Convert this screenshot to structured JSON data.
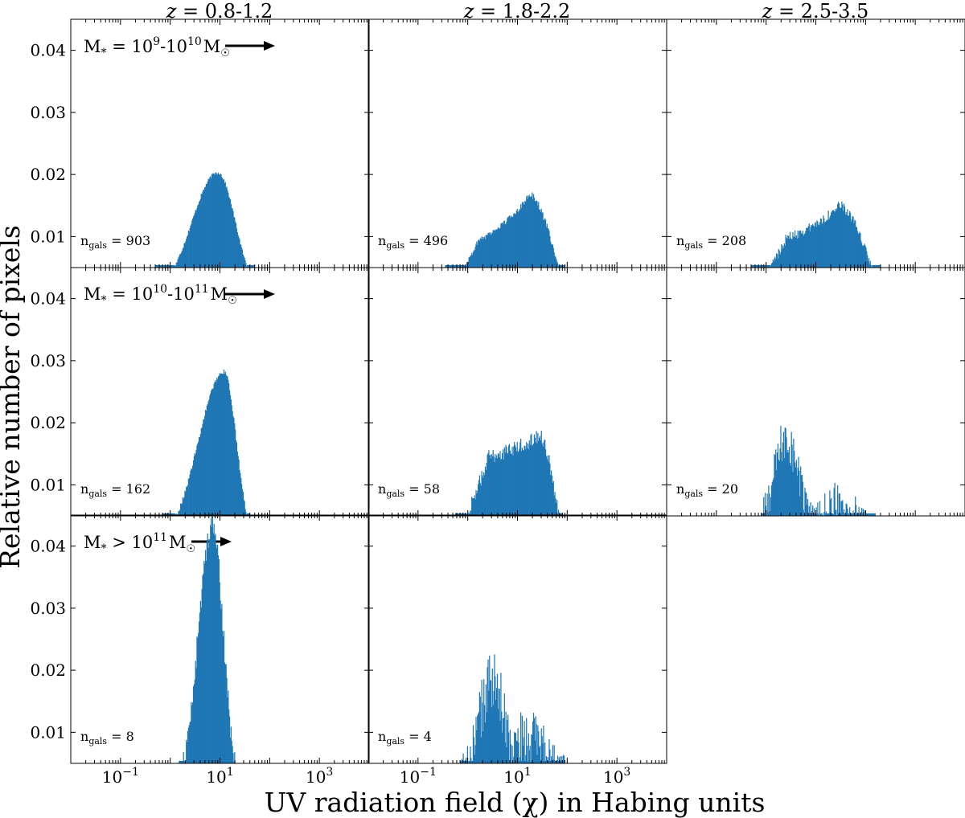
{
  "figure": {
    "ylabel": "Relative number of pixels",
    "xlabel": "UV radiation field (χ) in Habing units",
    "col_titles": [
      {
        "z": "z",
        "range": " = 0.8-1.2"
      },
      {
        "z": "z",
        "range": " = 1.8-2.2"
      },
      {
        "z": "z",
        "range": " = 2.5-3.5"
      }
    ],
    "row_labels": [
      {
        "prefix": "M",
        "sub": "*",
        "mid": " = 10",
        "sup1": "9",
        "mid2": "-10",
        "sup2": "10",
        "unit": "M",
        "unit_sub": "☉"
      },
      {
        "prefix": "M",
        "sub": "*",
        "mid": " = 10",
        "sup1": "10",
        "mid2": "-10",
        "sup2": "11",
        "unit": "M",
        "unit_sub": "☉"
      },
      {
        "prefix": "M",
        "sub": "*",
        "mid": " > 10",
        "sup1": "11",
        "mid2": "",
        "sup2": "",
        "unit": "M",
        "unit_sub": "☉"
      }
    ],
    "bar_color": "#1f77b4",
    "ytick_labels": [
      "0.01",
      "0.02",
      "0.03",
      "0.04"
    ],
    "xtick_labels": [
      {
        "base": "10",
        "exp": "−1"
      },
      {
        "base": "10",
        "exp": "1"
      },
      {
        "base": "10",
        "exp": "3"
      }
    ]
  },
  "chart_data": {
    "type": "histogram-grid",
    "x_scale": "log",
    "xlim": [
      0.01,
      10000
    ],
    "ylim": [
      0.005,
      0.045
    ],
    "yticks": [
      0.01,
      0.02,
      0.03,
      0.04
    ],
    "xticks": [
      0.1,
      10,
      1000
    ],
    "panels": [
      {
        "row": 0,
        "col": 0,
        "n_label": "903",
        "shape": "smooth",
        "peak_x": 9,
        "peak_y": 0.0203,
        "x_min": 0.5,
        "x_max": 50,
        "noise": 0.0003
      },
      {
        "row": 0,
        "col": 1,
        "n_label": "496",
        "shape": "bimodal",
        "peak_x": 18,
        "peak_y": 0.0168,
        "x_min": 0.35,
        "x_max": 90,
        "shoulder_x": 1.2,
        "shoulder_y": 0.0085,
        "noise": 0.0005
      },
      {
        "row": 0,
        "col": 2,
        "n_label": "208",
        "shape": "bimodal",
        "peak_x": 30,
        "peak_y": 0.015,
        "x_min": 0.5,
        "x_max": 200,
        "shoulder_x": 2,
        "shoulder_y": 0.009,
        "noise": 0.0008
      },
      {
        "row": 1,
        "col": 0,
        "n_label": "162",
        "shape": "smooth",
        "peak_x": 12,
        "peak_y": 0.0282,
        "x_min": 0.7,
        "x_max": 40,
        "noise": 0.0004
      },
      {
        "row": 1,
        "col": 1,
        "n_label": "58",
        "shape": "bimodal",
        "peak_x": 28,
        "peak_y": 0.018,
        "x_min": 0.55,
        "x_max": 80,
        "shoulder_x": 1.8,
        "shoulder_y": 0.014,
        "noise": 0.0012
      },
      {
        "row": 1,
        "col": 2,
        "n_label": "20",
        "shape": "spiky",
        "peak_x": 2.5,
        "peak_y": 0.0215,
        "x_min": 0.8,
        "x_max": 160,
        "shoulder_x": 30,
        "shoulder_y": 0.009,
        "noise": 0.0035
      },
      {
        "row": 2,
        "col": 0,
        "n_label": "8",
        "shape": "narrow",
        "peak_x": 7,
        "peak_y": 0.0435,
        "x_min": 1.5,
        "x_max": 20,
        "noise": 0.002
      },
      {
        "row": 2,
        "col": 1,
        "n_label": "4",
        "shape": "spiky",
        "peak_x": 3,
        "peak_y": 0.022,
        "x_min": 0.7,
        "x_max": 90,
        "shoulder_x": 18,
        "shoulder_y": 0.011,
        "noise": 0.005
      }
    ]
  }
}
